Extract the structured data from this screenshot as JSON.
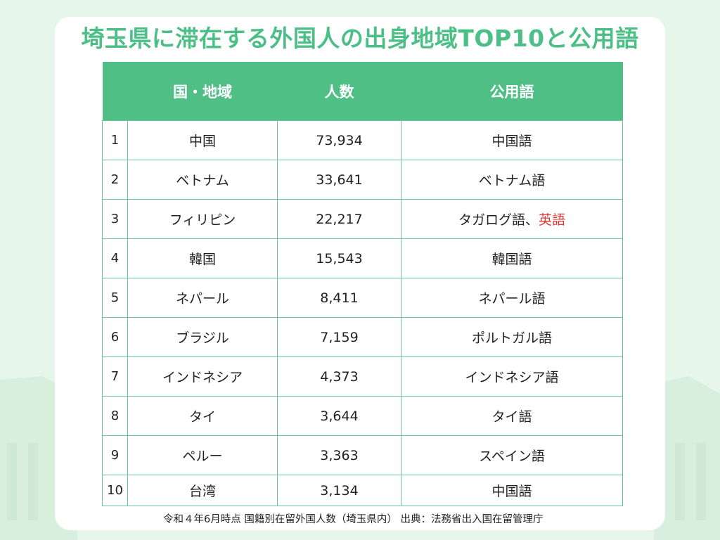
{
  "title": "埼玉県に滞在する外国人の出身地域TOP10と公用語",
  "table": {
    "headers": {
      "country": "国・地域",
      "population": "人数",
      "language": "公用語"
    },
    "rows": [
      {
        "rank": "1",
        "country": "中国",
        "population": "73,934",
        "language": "中国語"
      },
      {
        "rank": "2",
        "country": "ベトナム",
        "population": "33,641",
        "language": "ベトナム語"
      },
      {
        "rank": "3",
        "country": "フィリピン",
        "population": "22,217",
        "language": "タガログ語、",
        "language_extra": "英語"
      },
      {
        "rank": "4",
        "country": "韓国",
        "population": "15,543",
        "language": "韓国語"
      },
      {
        "rank": "5",
        "country": "ネパール",
        "population": "8,411",
        "language": "ネパール語"
      },
      {
        "rank": "6",
        "country": "ブラジル",
        "population": "7,159",
        "language": "ポルトガル語"
      },
      {
        "rank": "7",
        "country": "インドネシア",
        "population": "4,373",
        "language": "インドネシア語"
      },
      {
        "rank": "8",
        "country": "タイ",
        "population": "3,644",
        "language": "タイ語"
      },
      {
        "rank": "9",
        "country": "ペルー",
        "population": "3,363",
        "language": "スペイン語"
      },
      {
        "rank": "10",
        "country": "台湾",
        "population": "3,134",
        "language": "中国語"
      }
    ]
  },
  "footer": "令和４年6月時点 国籍別在留外国人数（埼玉県内） 出典：法務省出入国在留管理庁",
  "colors": {
    "accent": "#4fbf86",
    "highlight": "#e0383b",
    "background": "#e6f6ea"
  }
}
